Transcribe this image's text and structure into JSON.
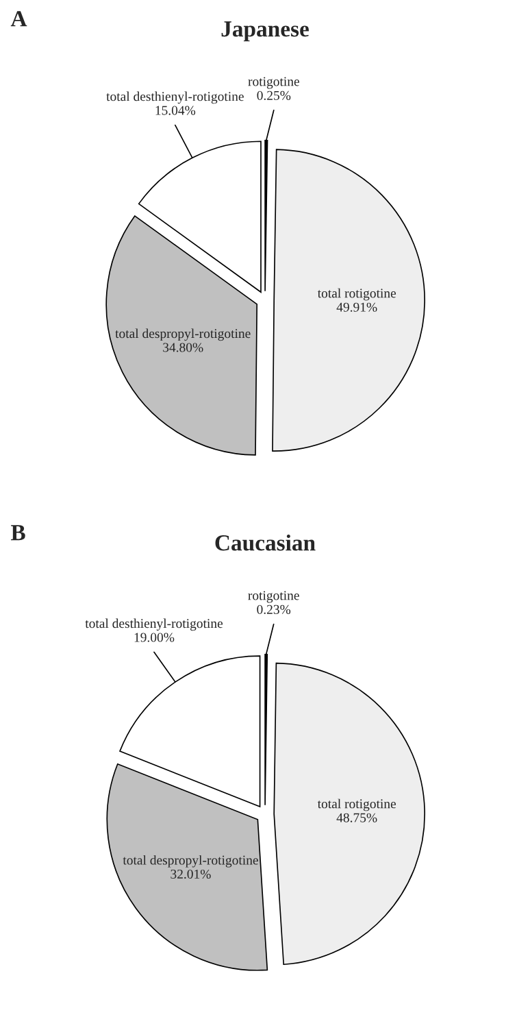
{
  "chart_data": [
    {
      "type": "pie",
      "title": "Japanese",
      "annotations": [
        "A"
      ],
      "categories": [
        "rotigotine",
        "total rotigotine",
        "total despropyl-rotigotine",
        "total desthienyl-rotigotine"
      ],
      "values": [
        0.25,
        49.91,
        34.8,
        15.04
      ],
      "value_labels": [
        "0.25%",
        "49.91%",
        "34.80%",
        "15.04%"
      ],
      "colors": [
        "#000000",
        "#eeeeee",
        "#c0c0c0",
        "#ffffff"
      ]
    },
    {
      "type": "pie",
      "title": "Caucasian",
      "annotations": [
        "B"
      ],
      "categories": [
        "rotigotine",
        "total rotigotine",
        "total despropyl-rotigotine",
        "total desthienyl-rotigotine"
      ],
      "values": [
        0.23,
        48.75,
        32.01,
        19.0
      ],
      "value_labels": [
        "0.23%",
        "48.75%",
        "32.01%",
        "19.00%"
      ],
      "colors": [
        "#000000",
        "#eeeeee",
        "#c0c0c0",
        "#ffffff"
      ]
    }
  ]
}
